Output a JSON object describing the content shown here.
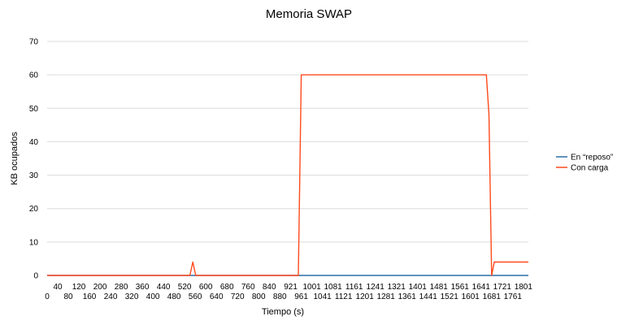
{
  "chart_data": {
    "type": "line",
    "title": "Memoria SWAP",
    "xlabel": "Tiempo (s)",
    "ylabel": "KB ocupados",
    "xlim": [
      0,
      1820
    ],
    "ylim": [
      0,
      70
    ],
    "y_ticks": [
      0,
      10,
      20,
      30,
      40,
      50,
      60,
      70
    ],
    "x_ticks": [
      0,
      40,
      80,
      120,
      160,
      200,
      240,
      280,
      320,
      360,
      400,
      440,
      480,
      520,
      560,
      600,
      640,
      680,
      720,
      760,
      800,
      840,
      880,
      921,
      961,
      1001,
      1041,
      1081,
      1121,
      1161,
      1201,
      1241,
      1281,
      1321,
      1361,
      1401,
      1441,
      1481,
      1521,
      1561,
      1601,
      1641,
      1681,
      1721,
      1761,
      1801
    ],
    "grid": true,
    "legend_position": "right",
    "series": [
      {
        "name": "En “reposo”",
        "color": "#2e6ea6",
        "points": [
          [
            0,
            0
          ],
          [
            1820,
            0
          ]
        ]
      },
      {
        "name": "Con carga",
        "color": "#ff4a1c",
        "points": [
          [
            0,
            0
          ],
          [
            540,
            0
          ],
          [
            551,
            4
          ],
          [
            562,
            0
          ],
          [
            950,
            0
          ],
          [
            961,
            60
          ],
          [
            1661,
            60
          ],
          [
            1671,
            48
          ],
          [
            1681,
            0
          ],
          [
            1691,
            4
          ],
          [
            1820,
            4
          ]
        ]
      }
    ]
  }
}
